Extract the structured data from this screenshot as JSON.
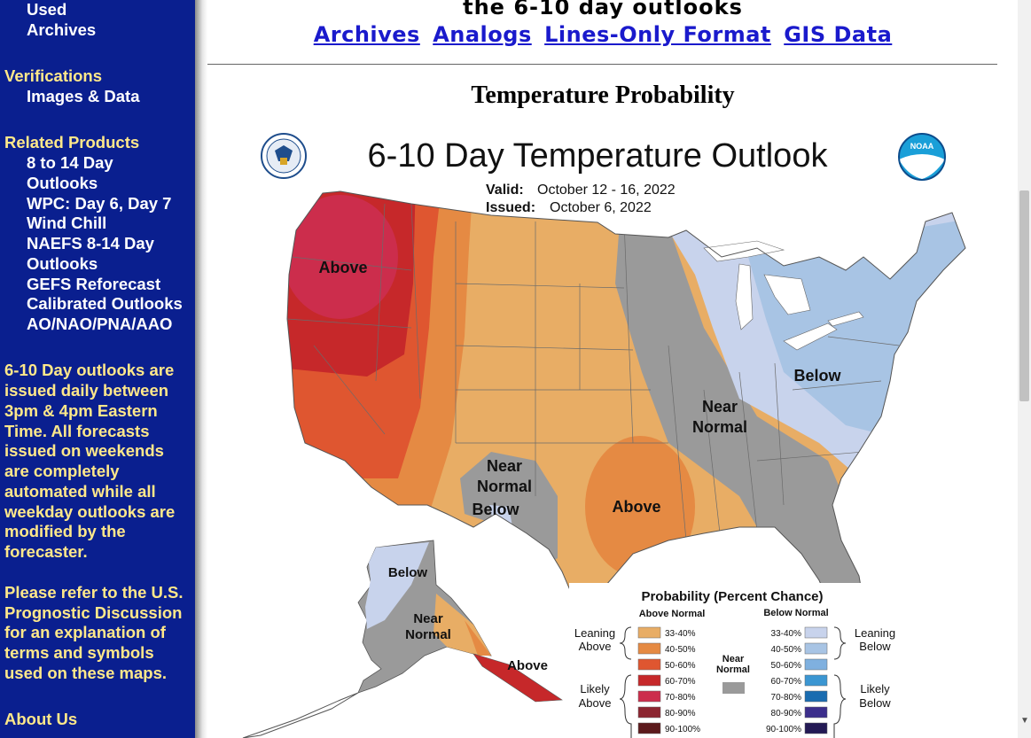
{
  "sidebar": {
    "used_archives": [
      "Used",
      "Archives"
    ],
    "verifications": {
      "heading": "Verifications",
      "items": [
        "Images & Data"
      ]
    },
    "related": {
      "heading": "Related Products",
      "items": [
        "8 to 14 Day",
        "Outlooks",
        "WPC: Day 6, Day 7",
        "Wind Chill",
        "NAEFS 8-14 Day",
        "Outlooks",
        "GEFS Reforecast",
        "Calibrated Outlooks",
        "AO/NAO/PNA/AAO"
      ]
    },
    "note1": [
      "6-10 Day outlooks are",
      "issued daily between",
      "3pm & 4pm Eastern",
      "Time. All forecasts",
      "issued on weekends",
      "are completely",
      "automated while all",
      "weekday outlooks are",
      "modified by the",
      "forecaster."
    ],
    "note2": [
      "Please refer to the U.S.",
      "Prognostic Discussion",
      "for an explanation of",
      "terms and symbols",
      "used on these maps."
    ],
    "about": "About Us"
  },
  "header": {
    "title": "the 6-10 day outlooks",
    "links": [
      "Archives",
      "Analogs",
      "Lines-Only Format",
      "GIS Data"
    ]
  },
  "section_title": "Temperature Probability",
  "map": {
    "title": "6-10 Day Temperature Outlook",
    "valid_label": "Valid:",
    "valid_value": "October 12 - 16, 2022",
    "issued_label": "Issued:",
    "issued_value": "October 6, 2022",
    "labels": {
      "above_west": "Above",
      "near_normal_east_1": "Near",
      "near_normal_east_2": "Normal",
      "below_east": "Below",
      "near_sw_1": "Near",
      "near_sw_2": "Normal",
      "below_sw": "Below",
      "above_south": "Above",
      "ak_below": "Below",
      "ak_near_1": "Near",
      "ak_near_2": "Normal",
      "ak_above": "Above"
    },
    "legend": {
      "title": "Probability (Percent Chance)",
      "above_header": "Above Normal",
      "below_header": "Below Normal",
      "near_header_1": "Near",
      "near_header_2": "Normal",
      "leaning_above_1": "Leaning",
      "leaning_above_2": "Above",
      "likely_above_1": "Likely",
      "likely_above_2": "Above",
      "leaning_below_1": "Leaning",
      "leaning_below_2": "Below",
      "likely_below_1": "Likely",
      "likely_below_2": "Below",
      "above_bins": [
        "33-40%",
        "40-50%",
        "50-60%",
        "60-70%",
        "70-80%",
        "80-90%",
        "90-100%"
      ],
      "below_bins": [
        "33-40%",
        "40-50%",
        "50-60%",
        "60-70%",
        "70-80%",
        "80-90%",
        "90-100%"
      ],
      "above_colors": [
        "#e8ad65",
        "#e58a43",
        "#df5630",
        "#c6282a",
        "#cc2d4c",
        "#8c2530",
        "#5c1a1c"
      ],
      "below_colors": [
        "#c8d3ec",
        "#a8c4e4",
        "#7fb0df",
        "#3b96d2",
        "#1a6cb0",
        "#3c2e8c",
        "#241a55"
      ],
      "near_color": "#9a9a9a"
    }
  }
}
